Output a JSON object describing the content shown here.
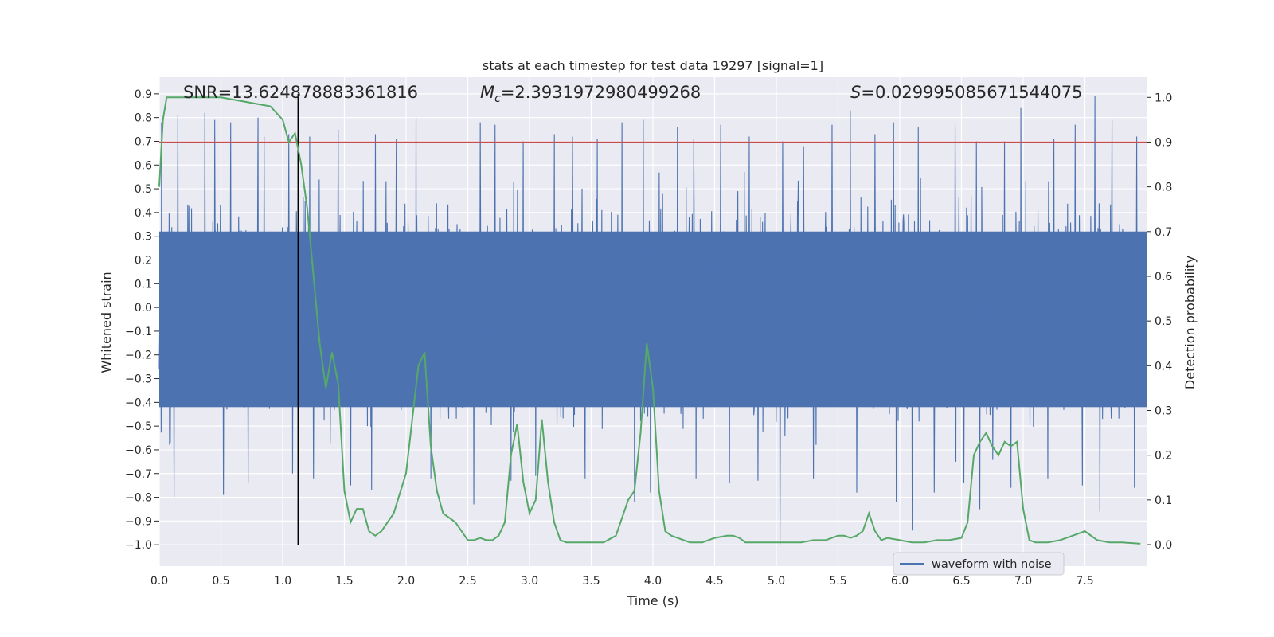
{
  "chart_data": {
    "type": "line",
    "title": "stats at each timestep for test data 19297 [signal=1]",
    "xlabel": "Time (s)",
    "ylabel": "Whitened strain",
    "y2label": "Detection probability",
    "xlim": [
      0.0,
      8.0
    ],
    "ylim": [
      -1.09,
      0.97
    ],
    "y2lim": [
      -0.048,
      1.045
    ],
    "xticks": [
      "0.0",
      "0.5",
      "1.0",
      "1.5",
      "2.0",
      "2.5",
      "3.0",
      "3.5",
      "4.0",
      "4.5",
      "5.0",
      "5.5",
      "6.0",
      "6.5",
      "7.0",
      "7.5"
    ],
    "xtick_values": [
      0.0,
      0.5,
      1.0,
      1.5,
      2.0,
      2.5,
      3.0,
      3.5,
      4.0,
      4.5,
      5.0,
      5.5,
      6.0,
      6.5,
      7.0,
      7.5
    ],
    "yticks": [
      "0.9",
      "0.8",
      "0.7",
      "0.6",
      "0.5",
      "0.4",
      "0.3",
      "0.2",
      "0.1",
      "0.0",
      "−0.1",
      "−0.2",
      "−0.3",
      "−0.4",
      "−0.5",
      "−0.6",
      "−0.7",
      "−0.8",
      "−0.9",
      "−1.0"
    ],
    "ytick_values": [
      0.9,
      0.8,
      0.7,
      0.6,
      0.5,
      0.4,
      0.3,
      0.2,
      0.1,
      0.0,
      -0.1,
      -0.2,
      -0.3,
      -0.4,
      -0.5,
      -0.6,
      -0.7,
      -0.8,
      -0.9,
      -1.0
    ],
    "y2ticks": [
      "1.0",
      "0.9",
      "0.8",
      "0.7",
      "0.6",
      "0.5",
      "0.4",
      "0.3",
      "0.2",
      "0.1",
      "0.0"
    ],
    "y2tick_values": [
      1.0,
      0.9,
      0.8,
      0.7,
      0.6,
      0.5,
      0.4,
      0.3,
      0.2,
      0.1,
      0.0
    ],
    "annotations": {
      "snr": "SNR=13.624878883361816",
      "mc_symbol": "M",
      "mc_subscript": "c",
      "mc_value": "=2.3931972980499268",
      "s_symbol": "S",
      "s_value": "=0.029995085671544075"
    },
    "legend": {
      "label": "waveform with noise",
      "location": "lower-right"
    },
    "threshold_line": {
      "y2": 0.9,
      "color": "#c44e52"
    },
    "marker_line": {
      "x": 1.125,
      "color": "#000000"
    },
    "waveform": {
      "name": "waveform with noise",
      "color": "#4c72b0",
      "duration": 8.0,
      "core_band": [
        -0.42,
        0.32
      ],
      "peaks": [
        [
          0.02,
          0.78
        ],
        [
          0.15,
          0.81
        ],
        [
          0.37,
          0.82
        ],
        [
          0.45,
          0.79
        ],
        [
          0.58,
          0.78
        ],
        [
          0.8,
          0.8
        ],
        [
          0.85,
          0.72
        ],
        [
          1.05,
          0.73
        ],
        [
          1.22,
          0.72
        ],
        [
          1.45,
          0.75
        ],
        [
          1.75,
          0.73
        ],
        [
          1.92,
          0.71
        ],
        [
          2.08,
          0.8
        ],
        [
          2.2,
          0.8
        ],
        [
          2.6,
          0.78
        ],
        [
          2.72,
          0.77
        ],
        [
          2.95,
          0.7
        ],
        [
          3.2,
          0.73
        ],
        [
          3.35,
          0.72
        ],
        [
          3.55,
          0.71
        ],
        [
          3.75,
          0.78
        ],
        [
          3.92,
          0.79
        ],
        [
          4.2,
          0.76
        ],
        [
          4.33,
          0.71
        ],
        [
          4.55,
          0.77
        ],
        [
          4.78,
          0.72
        ],
        [
          5.05,
          0.7
        ],
        [
          5.22,
          0.68
        ],
        [
          5.45,
          0.77
        ],
        [
          5.6,
          0.83
        ],
        [
          5.8,
          0.73
        ],
        [
          5.95,
          0.78
        ],
        [
          6.15,
          0.76
        ],
        [
          6.45,
          0.77
        ],
        [
          6.62,
          0.7
        ],
        [
          6.85,
          0.7
        ],
        [
          6.98,
          0.84
        ],
        [
          7.25,
          0.71
        ],
        [
          7.42,
          0.77
        ],
        [
          7.58,
          0.89
        ],
        [
          7.72,
          0.79
        ],
        [
          7.92,
          0.72
        ]
      ],
      "troughs": [
        [
          0.12,
          -0.8
        ],
        [
          0.52,
          -0.79
        ],
        [
          0.72,
          -0.74
        ],
        [
          1.08,
          -0.7
        ],
        [
          1.25,
          -0.72
        ],
        [
          1.55,
          -0.75
        ],
        [
          1.72,
          -0.77
        ],
        [
          2.2,
          -0.72
        ],
        [
          2.55,
          -0.83
        ],
        [
          2.85,
          -0.73
        ],
        [
          3.05,
          -0.71
        ],
        [
          3.45,
          -0.72
        ],
        [
          3.85,
          -0.82
        ],
        [
          3.98,
          -0.78
        ],
        [
          4.35,
          -0.72
        ],
        [
          4.62,
          -0.74
        ],
        [
          4.85,
          -0.73
        ],
        [
          5.03,
          -1.0
        ],
        [
          5.3,
          -0.72
        ],
        [
          5.65,
          -0.78
        ],
        [
          5.97,
          -0.82
        ],
        [
          6.1,
          -0.94
        ],
        [
          6.28,
          -0.78
        ],
        [
          6.52,
          -0.74
        ],
        [
          6.65,
          -0.85
        ],
        [
          6.9,
          -0.76
        ],
        [
          7.2,
          -0.72
        ],
        [
          7.48,
          -0.75
        ],
        [
          7.62,
          -0.86
        ],
        [
          7.9,
          -0.76
        ]
      ]
    },
    "detection_probability": {
      "color": "#55a868",
      "x": [
        0.0,
        0.03,
        0.06,
        0.12,
        0.2,
        0.3,
        0.4,
        0.5,
        0.6,
        0.7,
        0.8,
        0.9,
        0.95,
        1.0,
        1.05,
        1.1,
        1.15,
        1.2,
        1.25,
        1.3,
        1.35,
        1.4,
        1.45,
        1.5,
        1.55,
        1.6,
        1.65,
        1.7,
        1.75,
        1.8,
        1.9,
        2.0,
        2.05,
        2.1,
        2.15,
        2.2,
        2.25,
        2.3,
        2.35,
        2.4,
        2.45,
        2.5,
        2.55,
        2.6,
        2.65,
        2.7,
        2.75,
        2.8,
        2.85,
        2.9,
        2.95,
        3.0,
        3.05,
        3.1,
        3.15,
        3.2,
        3.25,
        3.3,
        3.35,
        3.4,
        3.5,
        3.6,
        3.7,
        3.8,
        3.85,
        3.9,
        3.95,
        4.0,
        4.05,
        4.1,
        4.15,
        4.2,
        4.25,
        4.3,
        4.4,
        4.5,
        4.6,
        4.65,
        4.7,
        4.75,
        4.8,
        4.9,
        5.0,
        5.1,
        5.2,
        5.3,
        5.4,
        5.5,
        5.55,
        5.6,
        5.65,
        5.7,
        5.75,
        5.8,
        5.85,
        5.9,
        6.0,
        6.1,
        6.2,
        6.3,
        6.4,
        6.5,
        6.55,
        6.6,
        6.65,
        6.7,
        6.75,
        6.8,
        6.85,
        6.9,
        6.95,
        7.0,
        7.05,
        7.1,
        7.2,
        7.3,
        7.35,
        7.4,
        7.5,
        7.6,
        7.7,
        7.8,
        7.95
      ],
      "y": [
        0.8,
        0.95,
        1.0,
        1.0,
        1.0,
        1.0,
        1.0,
        1.0,
        0.995,
        0.99,
        0.985,
        0.98,
        0.965,
        0.95,
        0.9,
        0.92,
        0.85,
        0.75,
        0.6,
        0.45,
        0.35,
        0.43,
        0.36,
        0.12,
        0.05,
        0.08,
        0.08,
        0.03,
        0.02,
        0.03,
        0.07,
        0.16,
        0.28,
        0.4,
        0.43,
        0.22,
        0.12,
        0.07,
        0.06,
        0.05,
        0.03,
        0.01,
        0.01,
        0.015,
        0.01,
        0.01,
        0.02,
        0.05,
        0.2,
        0.27,
        0.14,
        0.07,
        0.1,
        0.28,
        0.14,
        0.05,
        0.01,
        0.005,
        0.005,
        0.005,
        0.005,
        0.005,
        0.02,
        0.1,
        0.12,
        0.25,
        0.45,
        0.35,
        0.12,
        0.03,
        0.02,
        0.015,
        0.01,
        0.005,
        0.005,
        0.015,
        0.02,
        0.02,
        0.015,
        0.005,
        0.005,
        0.005,
        0.005,
        0.005,
        0.005,
        0.01,
        0.01,
        0.02,
        0.02,
        0.015,
        0.02,
        0.03,
        0.07,
        0.03,
        0.01,
        0.015,
        0.01,
        0.005,
        0.005,
        0.01,
        0.01,
        0.015,
        0.05,
        0.2,
        0.23,
        0.25,
        0.22,
        0.2,
        0.23,
        0.22,
        0.23,
        0.08,
        0.01,
        0.005,
        0.005,
        0.01,
        0.015,
        0.02,
        0.03,
        0.01,
        0.005,
        0.005,
        0.002
      ]
    }
  }
}
